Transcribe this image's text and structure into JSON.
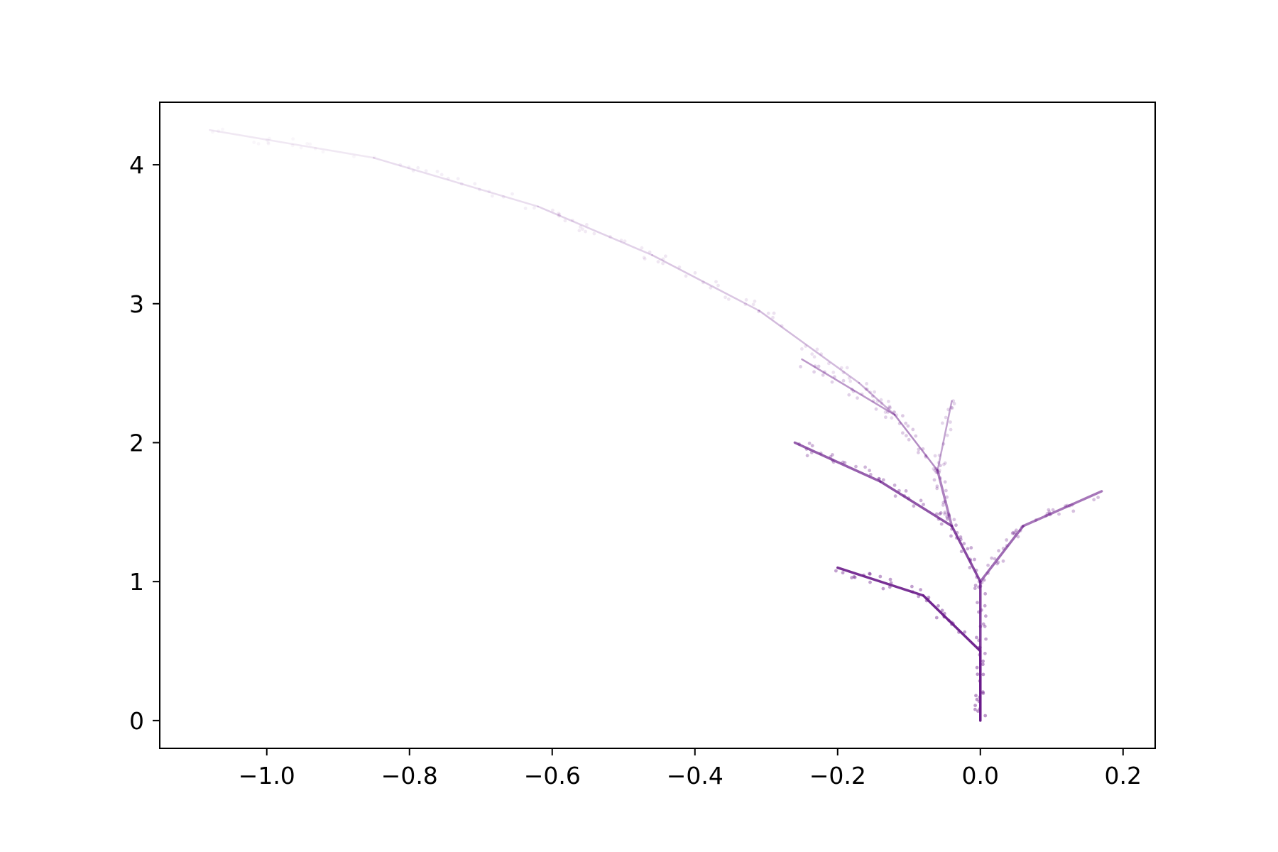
{
  "chart_data": {
    "type": "scatter",
    "title": "",
    "xlabel": "",
    "ylabel": "",
    "xlim": [
      -1.15,
      0.245
    ],
    "ylim": [
      -0.2,
      4.45
    ],
    "x_ticks": [
      {
        "value": -1.0,
        "label": "−1.0"
      },
      {
        "value": -0.8,
        "label": "−0.8"
      },
      {
        "value": -0.6,
        "label": "−0.6"
      },
      {
        "value": -0.4,
        "label": "−0.4"
      },
      {
        "value": -0.2,
        "label": "−0.2"
      },
      {
        "value": 0.0,
        "label": "0.0"
      },
      {
        "value": 0.2,
        "label": "0.2"
      }
    ],
    "y_ticks": [
      {
        "value": 0,
        "label": "0"
      },
      {
        "value": 1,
        "label": "1"
      },
      {
        "value": 2,
        "label": "2"
      },
      {
        "value": 3,
        "label": "3"
      },
      {
        "value": 4,
        "label": "4"
      }
    ],
    "grid": false,
    "legend": "none",
    "marker_color": "#6a1b8a",
    "description_of_data": "fractal tree point cloud generated by an iterated function system",
    "series": [
      {
        "name": "",
        "segments": [
          {
            "x": [
              0.0,
              0.0
            ],
            "y": [
              0.0,
              0.5
            ]
          },
          {
            "x": [
              0.0,
              -0.08
            ],
            "y": [
              0.5,
              0.9
            ]
          },
          {
            "x": [
              -0.08,
              -0.2
            ],
            "y": [
              0.9,
              1.1
            ]
          },
          {
            "x": [
              0.0,
              0.0
            ],
            "y": [
              0.5,
              1.0
            ]
          },
          {
            "x": [
              0.0,
              -0.04
            ],
            "y": [
              1.0,
              1.4
            ]
          },
          {
            "x": [
              -0.04,
              -0.14
            ],
            "y": [
              1.4,
              1.72
            ]
          },
          {
            "x": [
              -0.14,
              -0.26
            ],
            "y": [
              1.72,
              2.0
            ]
          },
          {
            "x": [
              0.0,
              0.06
            ],
            "y": [
              1.0,
              1.4
            ]
          },
          {
            "x": [
              0.06,
              0.17
            ],
            "y": [
              1.4,
              1.65
            ]
          },
          {
            "x": [
              -0.04,
              -0.06
            ],
            "y": [
              1.4,
              1.8
            ]
          },
          {
            "x": [
              -0.06,
              -0.12
            ],
            "y": [
              1.8,
              2.2
            ]
          },
          {
            "x": [
              -0.12,
              -0.25
            ],
            "y": [
              2.2,
              2.6
            ]
          },
          {
            "x": [
              -0.06,
              -0.04
            ],
            "y": [
              1.8,
              2.3
            ]
          },
          {
            "x": [
              -0.12,
              -0.17
            ],
            "y": [
              2.2,
              2.43
            ]
          },
          {
            "x": [
              -0.17,
              -0.31
            ],
            "y": [
              2.43,
              2.95
            ]
          },
          {
            "x": [
              -0.31,
              -0.46
            ],
            "y": [
              2.95,
              3.35
            ]
          },
          {
            "x": [
              -0.46,
              -0.62
            ],
            "y": [
              3.35,
              3.7
            ]
          },
          {
            "x": [
              -0.62,
              -0.85
            ],
            "y": [
              3.7,
              4.05
            ]
          },
          {
            "x": [
              -0.85,
              -1.08
            ],
            "y": [
              4.05,
              4.25
            ]
          }
        ]
      }
    ]
  }
}
